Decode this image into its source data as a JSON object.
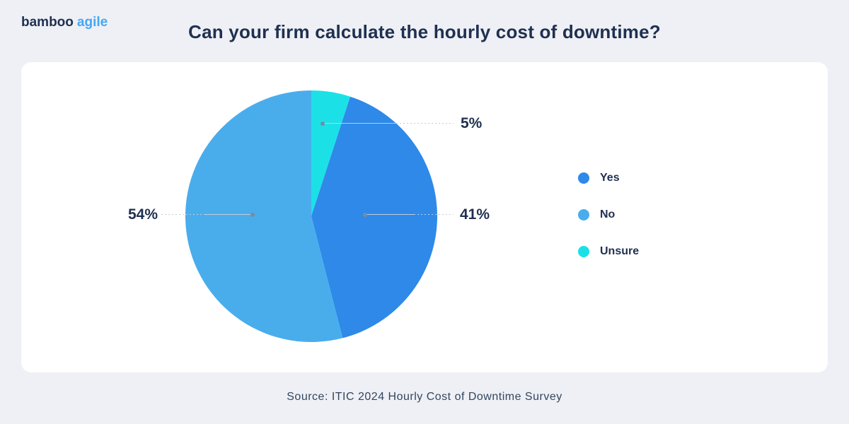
{
  "brand": {
    "part1": "bamboo",
    "part2": "agile",
    "color1": "#1f3050",
    "color2": "#45a7f5"
  },
  "title": "Can your firm calculate the hourly cost of downtime?",
  "source": "Source: ITIC 2024 Hourly Cost of Downtime Survey",
  "chart_data": {
    "type": "pie",
    "title": "Can your firm calculate the hourly cost of downtime?",
    "slices": [
      {
        "label": "Yes",
        "value": 41,
        "color": "#2e89e9"
      },
      {
        "label": "No",
        "value": 54,
        "color": "#49adec"
      },
      {
        "label": "Unsure",
        "value": 5,
        "color": "#1be1e7"
      }
    ],
    "unit": "%",
    "draw_order": [
      2,
      0,
      1
    ],
    "start_angle": "12 o'clock, clockwise",
    "legend_position": "right",
    "value_label_format": "percent"
  }
}
